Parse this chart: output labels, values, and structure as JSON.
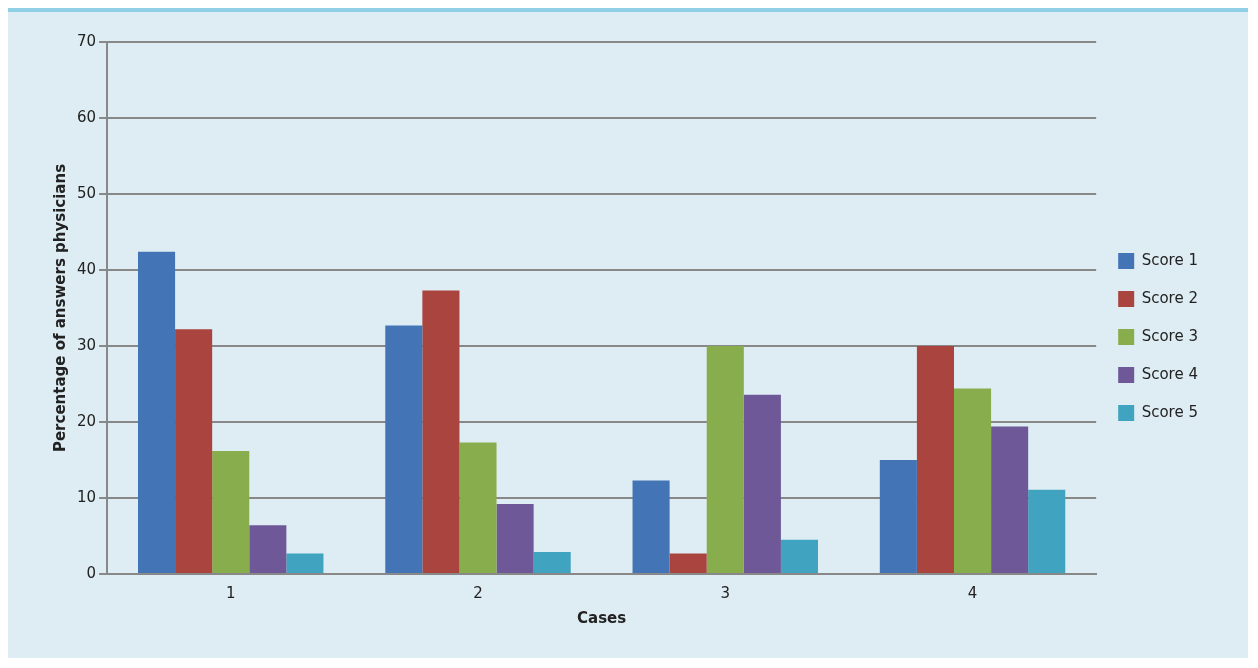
{
  "chart_data": {
    "type": "bar",
    "xlabel": "Cases",
    "ylabel": "Percentage of answers physicians",
    "categories": [
      "1",
      "2",
      "3",
      "4"
    ],
    "series": [
      {
        "name": "Score 1",
        "color": "#4375b6",
        "values": [
          42.4,
          32.7,
          12.3,
          15.0
        ]
      },
      {
        "name": "Score 2",
        "color": "#a9443f",
        "values": [
          32.2,
          37.3,
          2.7,
          30
        ]
      },
      {
        "name": "Score 3",
        "color": "#88ad4c",
        "values": [
          16.2,
          17.3,
          30,
          24.4
        ]
      },
      {
        "name": "Score 4",
        "color": "#6e5897",
        "values": [
          6.4,
          9.2,
          23.6,
          19.4
        ]
      },
      {
        "name": "Score 5",
        "color": "#40a3bf",
        "values": [
          2.7,
          2.9,
          4.5,
          11.1
        ]
      }
    ],
    "ylim": [
      0,
      70
    ],
    "yticks": [
      0,
      10,
      20,
      30,
      40,
      50,
      60,
      70
    ],
    "grid": "y",
    "legend": "right"
  }
}
